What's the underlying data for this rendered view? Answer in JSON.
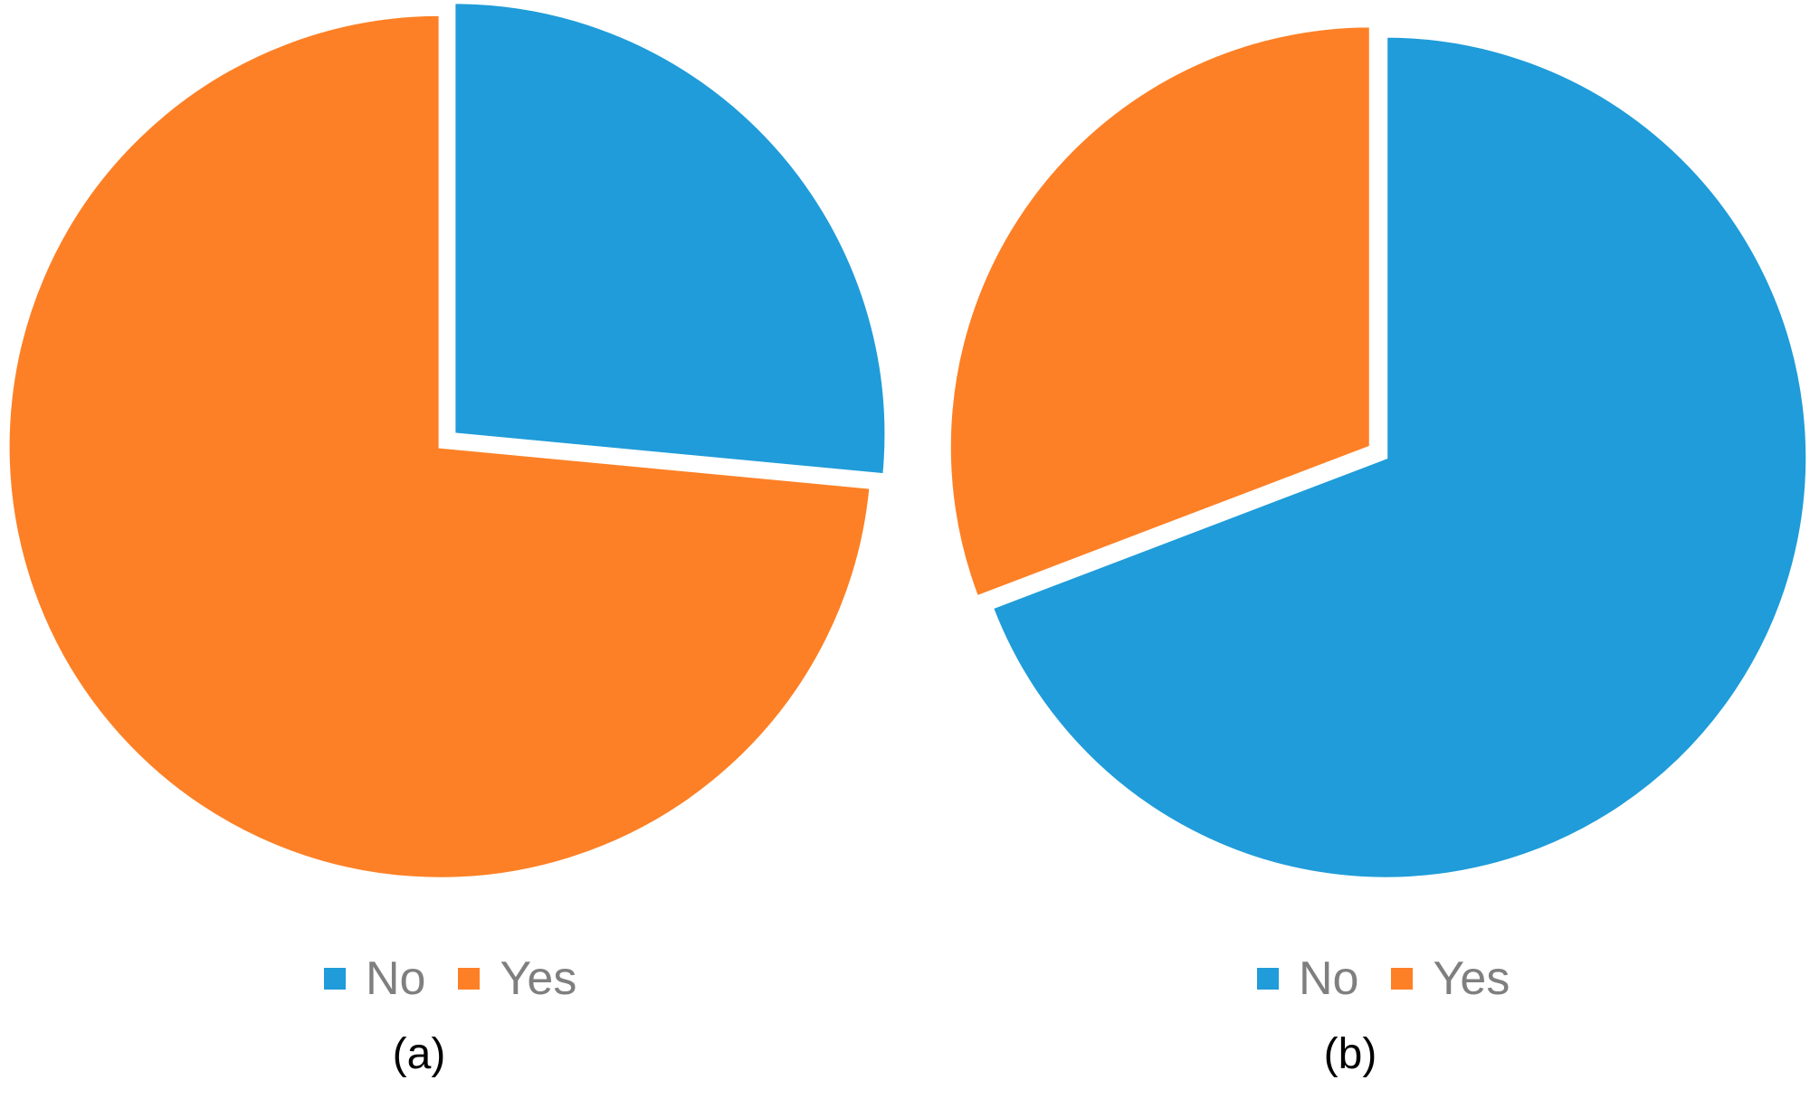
{
  "colors": {
    "no": "#1f9cd9",
    "yes": "#fd8026",
    "separator": "#ffffff",
    "legend_text": "#7f7f7f",
    "caption_text": "#000000"
  },
  "chart_data": [
    {
      "type": "pie",
      "caption": "(a)",
      "legend_position": "bottom",
      "slices": [
        {
          "label": "No",
          "value": 26.5,
          "color": "#1f9cd9"
        },
        {
          "label": "Yes",
          "value": 73.5,
          "color": "#fd8026"
        }
      ]
    },
    {
      "type": "pie",
      "caption": "(b)",
      "legend_position": "bottom",
      "slices": [
        {
          "label": "No",
          "value": 69.2,
          "color": "#1f9cd9"
        },
        {
          "label": "Yes",
          "value": 30.8,
          "color": "#fd8026"
        }
      ]
    }
  ]
}
